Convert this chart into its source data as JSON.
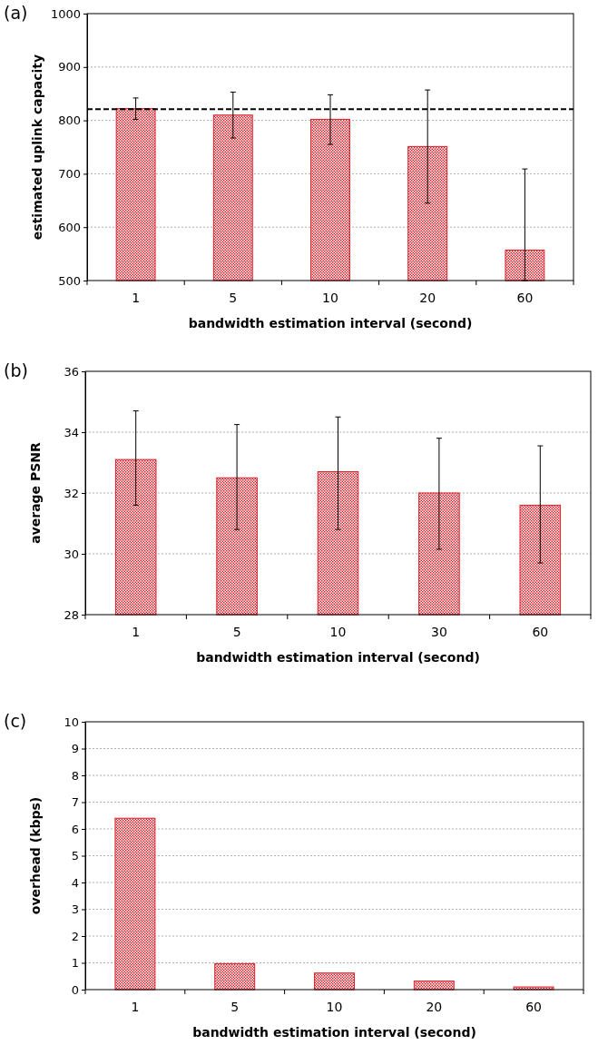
{
  "chart_data": [
    {
      "type": "bar",
      "title": "(a)",
      "xlabel": "bandwidth estimation interval (second)",
      "ylabel": "estimated uplink capacity",
      "categories": [
        "1",
        "5",
        "10",
        "20",
        "60"
      ],
      "values": [
        822,
        810,
        802,
        751,
        557
      ],
      "color": "#d9202a",
      "errors": [
        [
          802,
          842
        ],
        [
          767,
          853
        ],
        [
          755,
          848
        ],
        [
          645,
          857
        ],
        [
          500,
          709
        ]
      ],
      "ylim": [
        500,
        1000
      ],
      "yticks": [
        500,
        600,
        700,
        800,
        900,
        1000
      ],
      "grid": "y",
      "ref_lines": [
        {
          "axis": "y",
          "value": 821,
          "line_style": "dashed",
          "color": "#000000"
        }
      ]
    },
    {
      "type": "bar",
      "title": "(b)",
      "xlabel": "bandwidth estimation interval (second)",
      "ylabel": "average PSNR",
      "categories": [
        "1",
        "5",
        "10",
        "30",
        "60"
      ],
      "values": [
        33.1,
        32.5,
        32.7,
        32.0,
        31.6
      ],
      "color": "#d9202a",
      "errors": [
        [
          31.6,
          34.7
        ],
        [
          30.8,
          34.25
        ],
        [
          30.8,
          34.5
        ],
        [
          30.15,
          33.8
        ],
        [
          29.7,
          33.55
        ]
      ],
      "ylim": [
        28,
        36
      ],
      "yticks": [
        28,
        30,
        32,
        34,
        36
      ],
      "grid": "y"
    },
    {
      "type": "bar",
      "title": "(c)",
      "xlabel": "bandwidth estimation interval (second)",
      "ylabel": "overhead (kbps)",
      "categories": [
        "1",
        "5",
        "10",
        "20",
        "60"
      ],
      "values": [
        6.4,
        0.97,
        0.62,
        0.32,
        0.1
      ],
      "color": "#d9202a",
      "ylim": [
        0,
        10
      ],
      "yticks": [
        0,
        1,
        2,
        3,
        4,
        5,
        6,
        7,
        8,
        9,
        10
      ],
      "grid": "y"
    }
  ]
}
